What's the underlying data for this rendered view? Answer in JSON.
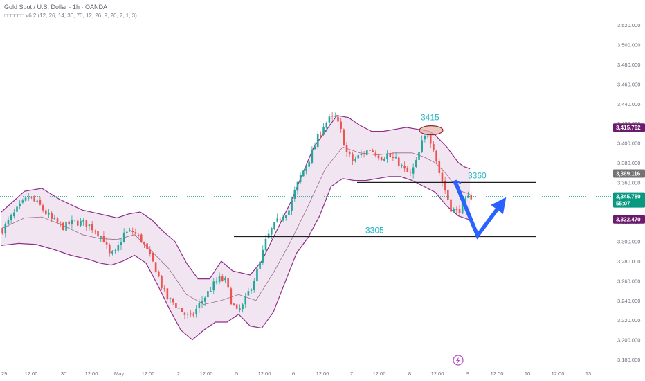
{
  "header": {
    "title": "Gold Spot / U.S. Dollar · 1h · OANDA",
    "indicator": "□□□□□□ v6.2 (12, 26, 14, 30, 70, 12, 26, 9, 20, 2, 1, 3)"
  },
  "colors": {
    "up": "#26a69a",
    "down": "#ef5350",
    "band_line": "#8e2d8a",
    "band_fill": "#e6cfe6",
    "basis": "#9c6b8a",
    "arrow": "#2962ff",
    "level_label": "#26b5c6",
    "tag_purple": "#6a1b6e",
    "tag_gray": "#737373",
    "tag_green": "#089981"
  },
  "price_tags": [
    {
      "value": "3,415.762",
      "price": 3415.762,
      "color": "#6a1b6e"
    },
    {
      "value": "3,369.116",
      "price": 3369.116,
      "color": "#737373"
    },
    {
      "value": "3,345.780",
      "sub": "55:07",
      "price": 3345.78,
      "color": "#089981"
    },
    {
      "value": "3,322.470",
      "price": 3322.47,
      "color": "#6a1b6e"
    }
  ],
  "chart_data": {
    "type": "candlestick",
    "title": "Gold Spot / U.S. Dollar · 1h · OANDA",
    "ylim": [
      3180,
      3530
    ],
    "y_ticks": [
      "3,180.000",
      "3,200.000",
      "3,220.000",
      "3,240.000",
      "3,260.000",
      "3,280.000",
      "3,300.000",
      "3,320.000",
      "3,340.000",
      "3,360.000",
      "3,380.000",
      "3,400.000",
      "3,420.000",
      "3,440.000",
      "3,460.000",
      "3,480.000",
      "3,500.000",
      "3,520.000"
    ],
    "y_tick_values": [
      3180,
      3200,
      3220,
      3240,
      3260,
      3280,
      3300,
      3320,
      3340,
      3360,
      3380,
      3400,
      3420,
      3440,
      3460,
      3480,
      3500,
      3520
    ],
    "x_ticks": [
      "29",
      "12:00",
      "30",
      "12:00",
      "May",
      "12:00",
      "2",
      "12:00",
      "5",
      "12:00",
      "6",
      "12:00",
      "7",
      "12:00",
      "8",
      "12:00",
      "9",
      "12:00",
      "10",
      "12:00",
      "13"
    ],
    "close_path": [
      [
        0,
        3312
      ],
      [
        5,
        3332
      ],
      [
        9,
        3345
      ],
      [
        13,
        3336
      ],
      [
        17,
        3322
      ],
      [
        21,
        3315
      ],
      [
        25,
        3320
      ],
      [
        29,
        3318
      ],
      [
        32,
        3312
      ],
      [
        35,
        3302
      ],
      [
        37,
        3286
      ],
      [
        39,
        3288
      ],
      [
        42,
        3308
      ],
      [
        45,
        3310
      ],
      [
        48,
        3302
      ],
      [
        50,
        3290
      ],
      [
        53,
        3272
      ],
      [
        55,
        3255
      ],
      [
        57,
        3242
      ],
      [
        59,
        3238
      ],
      [
        61,
        3232
      ],
      [
        63,
        3226
      ],
      [
        65,
        3222
      ],
      [
        67,
        3231
      ],
      [
        69,
        3240
      ],
      [
        71,
        3248
      ],
      [
        73,
        3256
      ],
      [
        75,
        3262
      ],
      [
        77,
        3260
      ],
      [
        79,
        3240
      ],
      [
        81,
        3228
      ],
      [
        83,
        3234
      ],
      [
        85,
        3248
      ],
      [
        87,
        3262
      ],
      [
        89,
        3278
      ],
      [
        91,
        3300
      ],
      [
        93,
        3312
      ],
      [
        95,
        3320
      ],
      [
        97,
        3328
      ],
      [
        99,
        3332
      ],
      [
        101,
        3350
      ],
      [
        103,
        3366
      ],
      [
        105,
        3378
      ],
      [
        107,
        3390
      ],
      [
        109,
        3405
      ],
      [
        111,
        3418
      ],
      [
        113,
        3424
      ],
      [
        115,
        3426
      ],
      [
        117,
        3412
      ],
      [
        119,
        3390
      ],
      [
        121,
        3382
      ],
      [
        123,
        3386
      ],
      [
        125,
        3390
      ],
      [
        127,
        3394
      ],
      [
        129,
        3390
      ],
      [
        131,
        3386
      ],
      [
        133,
        3388
      ],
      [
        135,
        3384
      ],
      [
        137,
        3380
      ],
      [
        139,
        3372
      ],
      [
        141,
        3368
      ],
      [
        143,
        3380
      ],
      [
        145,
        3400
      ],
      [
        147,
        3410
      ],
      [
        149,
        3396
      ],
      [
        151,
        3370
      ],
      [
        153,
        3352
      ],
      [
        155,
        3334
      ],
      [
        157,
        3330
      ],
      [
        159,
        3336
      ],
      [
        161,
        3344
      ],
      [
        162,
        3346
      ]
    ],
    "upper_band": [
      [
        0,
        3330
      ],
      [
        8,
        3351
      ],
      [
        14,
        3354
      ],
      [
        20,
        3343
      ],
      [
        28,
        3332
      ],
      [
        34,
        3328
      ],
      [
        40,
        3324
      ],
      [
        44,
        3328
      ],
      [
        48,
        3330
      ],
      [
        52,
        3322
      ],
      [
        56,
        3310
      ],
      [
        60,
        3300
      ],
      [
        64,
        3278
      ],
      [
        68,
        3262
      ],
      [
        72,
        3262
      ],
      [
        76,
        3280
      ],
      [
        80,
        3270
      ],
      [
        86,
        3266
      ],
      [
        90,
        3280
      ],
      [
        95,
        3310
      ],
      [
        100,
        3340
      ],
      [
        104,
        3368
      ],
      [
        108,
        3396
      ],
      [
        112,
        3412
      ],
      [
        116,
        3428
      ],
      [
        120,
        3426
      ],
      [
        124,
        3418
      ],
      [
        128,
        3412
      ],
      [
        132,
        3412
      ],
      [
        136,
        3414
      ],
      [
        140,
        3416
      ],
      [
        144,
        3414
      ],
      [
        148,
        3412
      ],
      [
        150,
        3408
      ],
      [
        152,
        3402
      ],
      [
        154,
        3396
      ],
      [
        156,
        3388
      ],
      [
        158,
        3380
      ],
      [
        160,
        3376
      ],
      [
        162,
        3374
      ]
    ],
    "lower_band": [
      [
        0,
        3296
      ],
      [
        6,
        3298
      ],
      [
        12,
        3297
      ],
      [
        18,
        3292
      ],
      [
        24,
        3286
      ],
      [
        30,
        3282
      ],
      [
        34,
        3278
      ],
      [
        38,
        3276
      ],
      [
        42,
        3280
      ],
      [
        46,
        3286
      ],
      [
        50,
        3278
      ],
      [
        54,
        3256
      ],
      [
        58,
        3232
      ],
      [
        62,
        3210
      ],
      [
        66,
        3200
      ],
      [
        70,
        3210
      ],
      [
        74,
        3218
      ],
      [
        78,
        3218
      ],
      [
        82,
        3226
      ],
      [
        86,
        3214
      ],
      [
        90,
        3212
      ],
      [
        94,
        3228
      ],
      [
        98,
        3258
      ],
      [
        102,
        3288
      ],
      [
        106,
        3304
      ],
      [
        110,
        3326
      ],
      [
        114,
        3356
      ],
      [
        118,
        3364
      ],
      [
        122,
        3362
      ],
      [
        126,
        3362
      ],
      [
        130,
        3364
      ],
      [
        134,
        3366
      ],
      [
        138,
        3366
      ],
      [
        142,
        3362
      ],
      [
        146,
        3356
      ],
      [
        150,
        3350
      ],
      [
        154,
        3336
      ],
      [
        158,
        3326
      ],
      [
        162,
        3322
      ]
    ],
    "basis_line": [
      [
        0,
        3313
      ],
      [
        8,
        3324
      ],
      [
        14,
        3325
      ],
      [
        20,
        3318
      ],
      [
        28,
        3307
      ],
      [
        34,
        3303
      ],
      [
        40,
        3302
      ],
      [
        46,
        3307
      ],
      [
        52,
        3290
      ],
      [
        58,
        3272
      ],
      [
        64,
        3246
      ],
      [
        70,
        3236
      ],
      [
        76,
        3240
      ],
      [
        82,
        3246
      ],
      [
        88,
        3240
      ],
      [
        94,
        3268
      ],
      [
        100,
        3300
      ],
      [
        106,
        3336
      ],
      [
        112,
        3374
      ],
      [
        118,
        3396
      ],
      [
        124,
        3390
      ],
      [
        130,
        3388
      ],
      [
        136,
        3390
      ],
      [
        142,
        3390
      ],
      [
        146,
        3386
      ],
      [
        150,
        3380
      ],
      [
        154,
        3368
      ],
      [
        158,
        3352
      ],
      [
        162,
        3348
      ]
    ],
    "annotations": [
      {
        "label": "3415",
        "price": 3415
      },
      {
        "label": "3360",
        "price": 3360
      },
      {
        "label": "3305",
        "price": 3305
      }
    ],
    "projection_arrow": [
      3362,
      3306,
      3340
    ],
    "grid": false
  }
}
